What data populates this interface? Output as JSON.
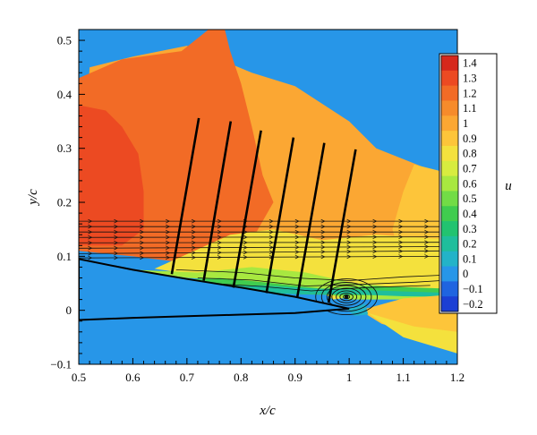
{
  "chart_data": {
    "type": "heatmap",
    "title": "",
    "xlabel": "x/c",
    "ylabel": "y/c",
    "xlim": [
      0.5,
      1.2
    ],
    "ylim": [
      -0.1,
      0.52
    ],
    "x_ticks": [
      "0.5",
      "0.6",
      "0.7",
      "0.8",
      "0.9",
      "1",
      "1.1",
      "1.2"
    ],
    "y_ticks": [
      "−0.1",
      "0",
      "0.1",
      "0.2",
      "0.3",
      "0.4",
      "0.5"
    ],
    "colorbar": {
      "label": "u",
      "levels": [
        "1.4",
        "1.3",
        "1.2",
        "1.1",
        "1",
        "0.9",
        "0.8",
        "0.7",
        "0.6",
        "0.5",
        "0.4",
        "0.3",
        "0.2",
        "0.1",
        "0",
        "−0.1",
        "−0.2"
      ],
      "colors": [
        "#d6281c",
        "#ec4a22",
        "#f26b26",
        "#f68b2b",
        "#fba733",
        "#fdc53a",
        "#f4e13d",
        "#d7ec3f",
        "#a8e840",
        "#72dc46",
        "#40cc4f",
        "#22c370",
        "#1fbe9c",
        "#23b3c8",
        "#2796e8",
        "#1f64e0",
        "#1b3fd4"
      ]
    },
    "regions": [
      {
        "level": "0",
        "color": "#2796e8",
        "polygon": [
          [
            0.5,
            -0.1
          ],
          [
            1.2,
            -0.1
          ],
          [
            1.2,
            0.52
          ],
          [
            0.5,
            0.52
          ]
        ]
      },
      {
        "level": "1",
        "color": "#fba733",
        "polygon": [
          [
            0.5,
            0.1
          ],
          [
            0.52,
            0.45
          ],
          [
            0.6,
            0.47
          ],
          [
            0.7,
            0.49
          ],
          [
            0.82,
            0.44
          ],
          [
            0.9,
            0.415
          ],
          [
            1.0,
            0.35
          ],
          [
            1.05,
            0.3
          ],
          [
            1.1,
            0.28
          ],
          [
            1.2,
            0.24
          ],
          [
            1.2,
            0.1
          ],
          [
            0.97,
            0.055
          ],
          [
            0.76,
            0.085
          ],
          [
            0.5,
            0.12
          ]
        ]
      },
      {
        "level": "1.2",
        "color": "#f26b26",
        "polygon": [
          [
            0.5,
            0.1
          ],
          [
            0.5,
            0.43
          ],
          [
            0.58,
            0.465
          ],
          [
            0.69,
            0.48
          ],
          [
            0.74,
            0.52
          ],
          [
            0.77,
            0.52
          ],
          [
            0.78,
            0.48
          ],
          [
            0.8,
            0.42
          ],
          [
            0.82,
            0.34
          ],
          [
            0.84,
            0.25
          ],
          [
            0.86,
            0.2
          ],
          [
            0.82,
            0.13
          ],
          [
            0.76,
            0.1
          ],
          [
            0.68,
            0.09
          ],
          [
            0.6,
            0.1
          ],
          [
            0.5,
            0.11
          ]
        ]
      },
      {
        "level": "1.3",
        "color": "#ec4a22",
        "polygon": [
          [
            0.5,
            0.12
          ],
          [
            0.5,
            0.38
          ],
          [
            0.55,
            0.37
          ],
          [
            0.58,
            0.34
          ],
          [
            0.61,
            0.29
          ],
          [
            0.62,
            0.22
          ],
          [
            0.62,
            0.15
          ],
          [
            0.58,
            0.12
          ]
        ]
      },
      {
        "level": "0.9",
        "color": "#fdc53a",
        "polygon": [
          [
            1.12,
            0.27
          ],
          [
            1.2,
            0.25
          ],
          [
            1.2,
            0.1
          ],
          [
            1.1,
            0.08
          ],
          [
            1.08,
            0.15
          ],
          [
            1.1,
            0.22
          ]
        ]
      },
      {
        "level": "0.8",
        "color": "#f4e13d",
        "polygon": [
          [
            0.78,
            0.14
          ],
          [
            0.86,
            0.15
          ],
          [
            0.95,
            0.13
          ],
          [
            1.05,
            0.14
          ],
          [
            1.2,
            0.13
          ],
          [
            1.2,
            0.03
          ],
          [
            1.05,
            0.03
          ],
          [
            0.97,
            0.02
          ],
          [
            0.9,
            0.07
          ],
          [
            0.8,
            0.07
          ],
          [
            0.72,
            0.065
          ],
          [
            0.64,
            0.077
          ]
        ]
      },
      {
        "level": "0.6",
        "color": "#a8e840",
        "polygon": [
          [
            0.6,
            0.075
          ],
          [
            0.72,
            0.07
          ],
          [
            0.82,
            0.08
          ],
          [
            0.92,
            0.07
          ],
          [
            1.0,
            0.052
          ],
          [
            1.1,
            0.04
          ],
          [
            1.2,
            0.04
          ],
          [
            1.2,
            0.02
          ],
          [
            1.0,
            0.02
          ],
          [
            0.92,
            0.04
          ],
          [
            0.8,
            0.055
          ],
          [
            0.7,
            0.06
          ]
        ]
      },
      {
        "level": "0.4",
        "color": "#40cc4f",
        "polygon": [
          [
            0.66,
            0.055
          ],
          [
            0.76,
            0.06
          ],
          [
            0.86,
            0.05
          ],
          [
            0.95,
            0.04
          ],
          [
            1.05,
            0.045
          ],
          [
            1.18,
            0.04
          ],
          [
            1.2,
            0.032
          ],
          [
            1.1,
            0.028
          ],
          [
            1.0,
            0.028
          ],
          [
            0.9,
            0.03
          ],
          [
            0.8,
            0.04
          ],
          [
            0.7,
            0.045
          ]
        ]
      },
      {
        "level": "0.2",
        "color": "#1fbe9c",
        "polygon": [
          [
            0.72,
            0.045
          ],
          [
            0.84,
            0.046
          ],
          [
            0.94,
            0.04
          ],
          [
            1.02,
            0.038
          ],
          [
            1.1,
            0.035
          ],
          [
            1.2,
            0.032
          ],
          [
            1.2,
            0.025
          ],
          [
            1.1,
            0.026
          ],
          [
            1.0,
            0.03
          ],
          [
            0.9,
            0.03
          ],
          [
            0.8,
            0.035
          ]
        ]
      },
      {
        "level": "0.9",
        "color": "#fdc53a",
        "polygon": [
          [
            1.02,
            0.0
          ],
          [
            1.1,
            0.022
          ],
          [
            1.2,
            0.03
          ],
          [
            1.2,
            -0.04
          ],
          [
            1.13,
            -0.045
          ],
          [
            1.06,
            -0.025
          ]
        ]
      },
      {
        "level": "0.8",
        "color": "#f4e13d",
        "polygon": [
          [
            1.035,
            -0.005
          ],
          [
            1.1,
            -0.05
          ],
          [
            1.2,
            -0.08
          ],
          [
            1.2,
            -0.04
          ],
          [
            1.12,
            -0.03
          ]
        ]
      },
      {
        "level": "0",
        "color": "#2796e8",
        "polygon": [
          [
            1.2,
            -0.08
          ],
          [
            1.2,
            -0.1
          ],
          [
            1.15,
            -0.1
          ]
        ]
      },
      {
        "level": "0.1",
        "color": "#23b3c8",
        "polygon": [
          [
            0.995,
            0.002
          ],
          [
            1.03,
            0.012
          ],
          [
            1.035,
            -0.008
          ],
          [
            1.01,
            -0.01
          ]
        ]
      }
    ],
    "airfoil": {
      "upper": [
        [
          0.5,
          0.095
        ],
        [
          0.6,
          0.075
        ],
        [
          0.7,
          0.058
        ],
        [
          0.8,
          0.042
        ],
        [
          0.9,
          0.025
        ],
        [
          1.0,
          0.003
        ]
      ],
      "lower": [
        [
          0.5,
          -0.018
        ],
        [
          0.6,
          -0.014
        ],
        [
          0.7,
          -0.011
        ],
        [
          0.8,
          -0.008
        ],
        [
          0.9,
          -0.005
        ],
        [
          1.0,
          0.003
        ]
      ]
    },
    "velocity_profiles": [
      {
        "x0": 0.672,
        "y0": 0.067,
        "x1": 0.722,
        "y1": 0.356
      },
      {
        "x0": 0.731,
        "y0": 0.055,
        "x1": 0.781,
        "y1": 0.35
      },
      {
        "x0": 0.786,
        "y0": 0.042,
        "x1": 0.837,
        "y1": 0.333
      },
      {
        "x0": 0.847,
        "y0": 0.032,
        "x1": 0.897,
        "y1": 0.32
      },
      {
        "x0": 0.904,
        "y0": 0.024,
        "x1": 0.954,
        "y1": 0.31
      },
      {
        "x0": 0.962,
        "y0": 0.014,
        "x1": 1.012,
        "y1": 0.298
      }
    ],
    "streamlines": [
      {
        "y_start": 0.165,
        "y_end": 0.165
      },
      {
        "y_start": 0.155,
        "y_end": 0.155
      },
      {
        "y_start": 0.145,
        "y_end": 0.145
      },
      {
        "y_start": 0.135,
        "y_end": 0.136
      },
      {
        "y_start": 0.125,
        "y_end": 0.126
      },
      {
        "y_start": 0.115,
        "y_end": 0.118
      },
      {
        "y_start": 0.105,
        "y_end": 0.11
      },
      {
        "y_start": 0.097,
        "y_end": 0.1
      }
    ],
    "lower_streamlines": [
      {
        "points": [
          [
            0.68,
            0.075
          ],
          [
            0.8,
            0.07
          ],
          [
            0.9,
            0.06
          ],
          [
            1.0,
            0.055
          ],
          [
            1.1,
            0.062
          ],
          [
            1.17,
            0.065
          ]
        ]
      },
      {
        "points": [
          [
            0.72,
            0.06
          ],
          [
            0.82,
            0.056
          ],
          [
            0.92,
            0.045
          ],
          [
            1.02,
            0.048
          ],
          [
            1.12,
            0.052
          ],
          [
            1.17,
            0.055
          ]
        ]
      },
      {
        "points": [
          [
            0.74,
            0.05
          ],
          [
            0.84,
            0.044
          ],
          [
            0.93,
            0.036
          ],
          [
            1.03,
            0.042
          ],
          [
            1.15,
            0.046
          ]
        ]
      }
    ],
    "vortex": {
      "x": 0.995,
      "y": 0.025,
      "rx_list": [
        0.006,
        0.012,
        0.019,
        0.027,
        0.036,
        0.046,
        0.057
      ],
      "ry_ratio": 0.58
    }
  }
}
